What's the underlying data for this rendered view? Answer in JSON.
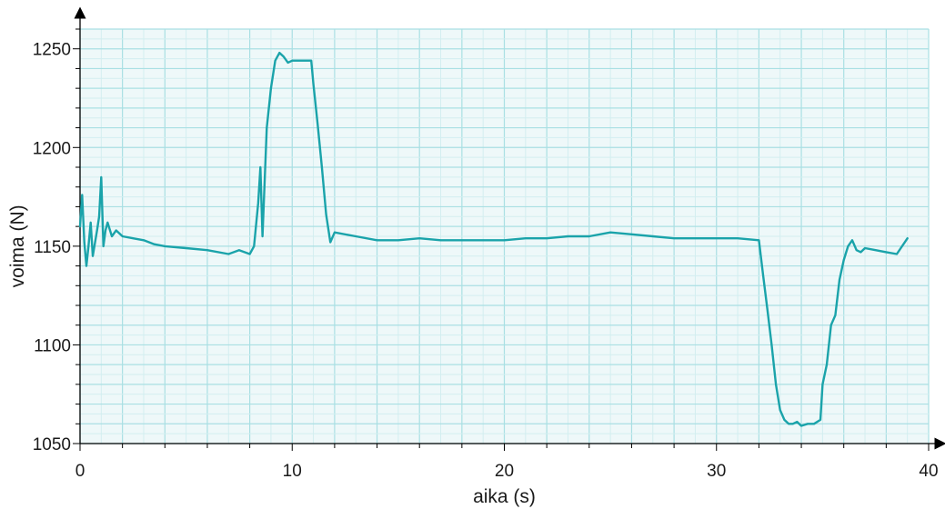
{
  "chart_data": {
    "type": "line",
    "title": "",
    "xlabel": "aika (s)",
    "ylabel": "voima (N)",
    "xlim": [
      0,
      40
    ],
    "ylim": [
      1050,
      1260
    ],
    "x_ticks": [
      0,
      10,
      20,
      30,
      40
    ],
    "y_ticks": [
      1050,
      1100,
      1150,
      1200,
      1250
    ],
    "x_tick_labels": [
      "0",
      "10",
      "20",
      "30",
      "40"
    ],
    "y_tick_labels": [
      "1050",
      "1100",
      "1150",
      "1200",
      "1250"
    ],
    "grid": true,
    "colors": {
      "line": "#1aa3aa",
      "plot_background": "#eef8f9",
      "grid_major": "#a9dfe3",
      "grid_minor": "#d3eef0",
      "axis": "#000000"
    },
    "series": [
      {
        "x": [
          0.0,
          0.1,
          0.2,
          0.3,
          0.4,
          0.5,
          0.6,
          0.8,
          0.9,
          1.0,
          1.1,
          1.2,
          1.3,
          1.5,
          1.7,
          2.0,
          2.5,
          3.0,
          3.5,
          4.0,
          5.0,
          6.0,
          7.0,
          7.5,
          8.0,
          8.2,
          8.4,
          8.5,
          8.6,
          8.8,
          9.0,
          9.2,
          9.4,
          9.6,
          9.8,
          10.0,
          10.3,
          10.6,
          10.9,
          11.0,
          11.2,
          11.4,
          11.6,
          11.8,
          12.0,
          13,
          14,
          15,
          16,
          17,
          18,
          19,
          20,
          21,
          22,
          23,
          24,
          25,
          26,
          27,
          28,
          29,
          30,
          31,
          32,
          32.2,
          32.4,
          32.6,
          32.8,
          33.0,
          33.2,
          33.4,
          33.6,
          33.8,
          34.0,
          34.3,
          34.6,
          34.9,
          35.0,
          35.2,
          35.4,
          35.6,
          35.8,
          36.0,
          36.2,
          36.4,
          36.6,
          36.8,
          37.0,
          37.5,
          38.0,
          38.5,
          39.0
        ],
        "y": [
          1160,
          1176,
          1152,
          1140,
          1150,
          1162,
          1145,
          1158,
          1165,
          1185,
          1150,
          1158,
          1162,
          1155,
          1158,
          1155,
          1154,
          1153,
          1151,
          1150,
          1149,
          1148,
          1146,
          1148,
          1146,
          1150,
          1172,
          1190,
          1155,
          1210,
          1230,
          1244,
          1248,
          1246,
          1243,
          1244,
          1244,
          1244,
          1244,
          1232,
          1212,
          1190,
          1166,
          1152,
          1157,
          1155,
          1153,
          1153,
          1154,
          1153,
          1153,
          1153,
          1153,
          1154,
          1154,
          1155,
          1155,
          1157,
          1156,
          1155,
          1154,
          1154,
          1154,
          1154,
          1153,
          1135,
          1118,
          1100,
          1080,
          1067,
          1062,
          1060,
          1060,
          1061,
          1059,
          1060,
          1060,
          1062,
          1080,
          1090,
          1110,
          1115,
          1133,
          1143,
          1150,
          1153,
          1148,
          1147,
          1149,
          1148,
          1147,
          1146,
          1154
        ]
      }
    ]
  }
}
